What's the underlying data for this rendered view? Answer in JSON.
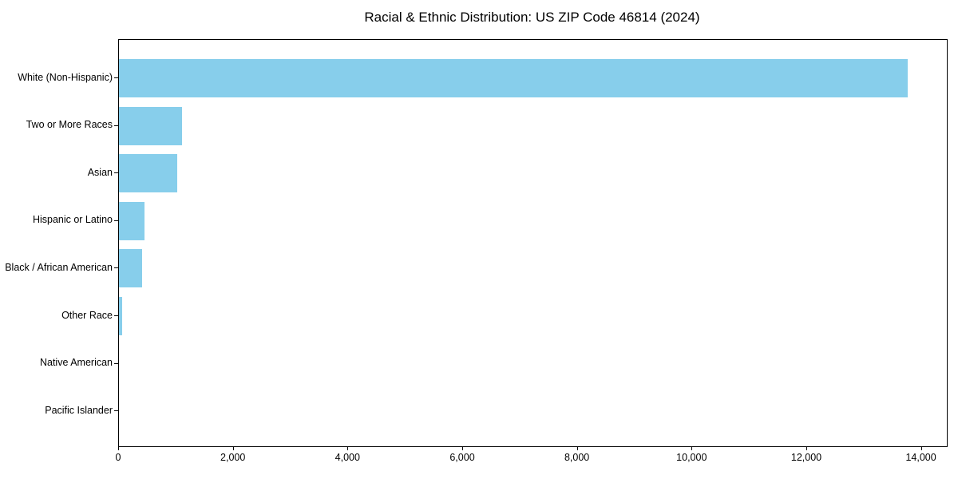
{
  "chart_data": {
    "type": "bar",
    "orientation": "horizontal",
    "title": "Racial & Ethnic Distribution: US ZIP Code 46814 (2024)",
    "categories": [
      "White (Non-Hispanic)",
      "Two or More Races",
      "Asian",
      "Hispanic or Latino",
      "Black / African American",
      "Other Race",
      "Native American",
      "Pacific Islander"
    ],
    "values": [
      13750,
      1100,
      1020,
      450,
      400,
      50,
      0,
      0
    ],
    "xlabel": "",
    "ylabel": "",
    "xlim": [
      0,
      14437
    ],
    "x_ticks": [
      0,
      2000,
      4000,
      6000,
      8000,
      10000,
      12000,
      14000
    ],
    "x_tick_labels": [
      "0",
      "2,000",
      "4,000",
      "6,000",
      "8,000",
      "10,000",
      "12,000",
      "14,000"
    ],
    "grid": false,
    "legend_position": "none",
    "bar_color": "#87ceeb",
    "axis_color": "#000000",
    "text_color": "#000000"
  }
}
